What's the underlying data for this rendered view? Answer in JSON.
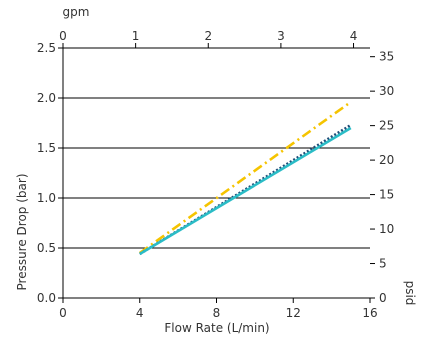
{
  "chart_data": {
    "type": "line",
    "xlabel": "Flow Rate (L/min)",
    "ylabel": "Pressure Drop (bar)",
    "top_axis_label": "gpm",
    "right_axis_label": "psid",
    "xlim": [
      0,
      16
    ],
    "ylim": [
      0.0,
      2.5
    ],
    "x_ticks": [
      0,
      4,
      8,
      12,
      16
    ],
    "x_tick_labels": [
      "0",
      "4",
      "8",
      "12",
      "16"
    ],
    "y_ticks": [
      0.0,
      0.5,
      1.0,
      1.5,
      2.0,
      2.5
    ],
    "y_tick_labels": [
      "0.0",
      "0.5",
      "1.0",
      "1.5",
      "2.0",
      "2.5"
    ],
    "top_ticks_gpm": [
      0,
      1,
      2,
      3,
      4
    ],
    "top_tick_labels": [
      "0",
      "1",
      "2",
      "3",
      "4"
    ],
    "right_ticks_psid": [
      0,
      5,
      10,
      15,
      20,
      25,
      30,
      35
    ],
    "right_tick_labels": [
      "0",
      "5",
      "10",
      "15",
      "20",
      "25",
      "30",
      "35"
    ],
    "gridlines": "horizontal",
    "series": [
      {
        "style": "dash-dot",
        "color": "#f5c400",
        "x": [
          4,
          15
        ],
        "y": [
          0.45,
          1.96
        ]
      },
      {
        "style": "dotted",
        "color": "#1f4e79",
        "x": [
          4,
          15
        ],
        "y": [
          0.44,
          1.73
        ]
      },
      {
        "style": "solid",
        "color": "#2bbcc6",
        "x": [
          4,
          15
        ],
        "y": [
          0.44,
          1.7
        ]
      }
    ]
  }
}
